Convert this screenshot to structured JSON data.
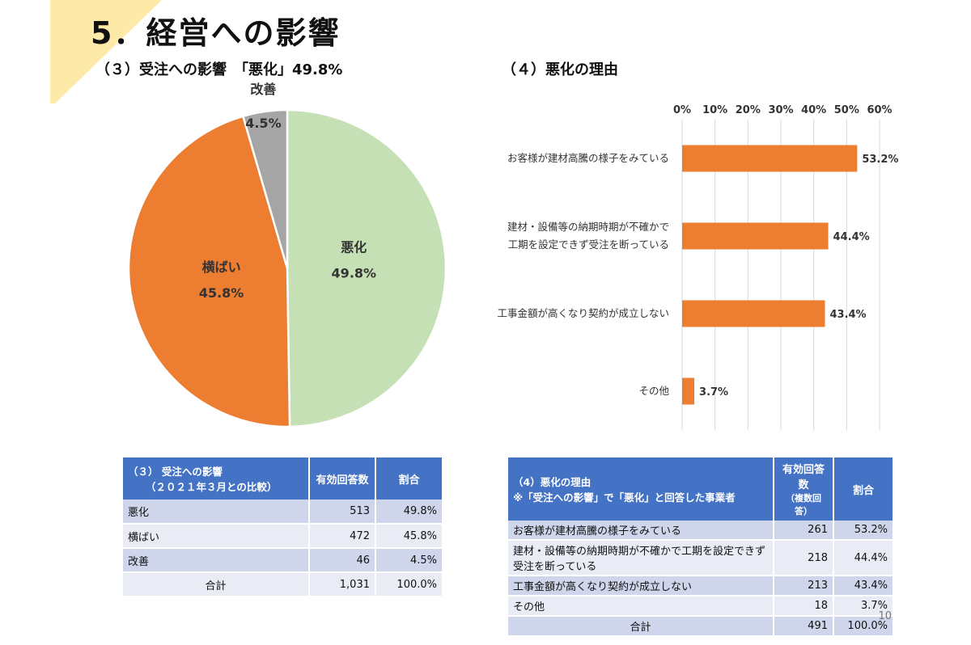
{
  "slide": {
    "title": "5．経営への影響",
    "page_number": "10"
  },
  "left_section": {
    "subtitle": "（３）受注への影響　「悪化」49.8%"
  },
  "right_section": {
    "subtitle": "（４）悪化の理由"
  },
  "colors": {
    "corner": "#fde9a8",
    "worse": "#c5e0b4",
    "flat": "#ed7d31",
    "improve": "#a5a5a5",
    "bar": "#ed7d31",
    "grid": "#d9d9d9",
    "table_header": "#4472c4"
  },
  "chart_data": [
    {
      "type": "pie",
      "slices": [
        {
          "name": "悪化",
          "value": 49.8,
          "label": "49.8%"
        },
        {
          "name": "横ばい",
          "value": 45.8,
          "label": "45.8%"
        },
        {
          "name": "改善",
          "value": 4.5,
          "label": "4.5%"
        }
      ],
      "start": "12 o'clock",
      "direction": "clockwise"
    },
    {
      "type": "bar",
      "orientation": "horizontal",
      "categories": [
        [
          "お客様が建材高騰の様子をみている"
        ],
        [
          "建材・設備等の納期時期が不確かで",
          "工期を設定できず受注を断っている"
        ],
        [
          "工事金額が高くなり契約が成立しない"
        ],
        [
          "その他"
        ]
      ],
      "values": [
        53.2,
        44.4,
        43.4,
        3.7
      ],
      "value_labels": [
        "53.2%",
        "44.4%",
        "43.4%",
        "3.7%"
      ],
      "xlim": [
        0,
        60
      ],
      "ticks": [
        "0%",
        "10%",
        "20%",
        "30%",
        "40%",
        "50%",
        "60%"
      ],
      "tick_values": [
        0,
        10,
        20,
        30,
        40,
        50,
        60
      ],
      "x_axis_position": "top",
      "grid": true
    }
  ],
  "table_left": {
    "header_line1": "（３） 受注への影響",
    "header_line2": "（２０２１年３月との比較）",
    "col_count": "有効回答数",
    "col_ratio": "割合",
    "rows": [
      {
        "label": "悪化",
        "count": "513",
        "ratio": "49.8%"
      },
      {
        "label": "横ばい",
        "count": "472",
        "ratio": "45.8%"
      },
      {
        "label": "改善",
        "count": "46",
        "ratio": "4.5%"
      }
    ],
    "total": {
      "label": "合計",
      "count": "1,031",
      "ratio": "100.0%"
    }
  },
  "table_right": {
    "header_line1": "（4）悪化の理由",
    "header_line2": "※「受注への影響」で「悪化」と回答した事業者",
    "col_count_line1": "有効回答数",
    "col_count_line2": "（複数回答）",
    "col_ratio": "割合",
    "rows": [
      {
        "label": "お客様が建材高騰の様子をみている",
        "count": "261",
        "ratio": "53.2%"
      },
      {
        "label": "建材・設備等の納期時期が不確かで工期を設定できず受注を断っている",
        "count": "218",
        "ratio": "44.4%"
      },
      {
        "label": "工事金額が高くなり契約が成立しない",
        "count": "213",
        "ratio": "43.4%"
      },
      {
        "label": "その他",
        "count": "18",
        "ratio": "3.7%"
      }
    ],
    "total": {
      "label": "合計",
      "count": "491",
      "ratio": "100.0%"
    }
  }
}
